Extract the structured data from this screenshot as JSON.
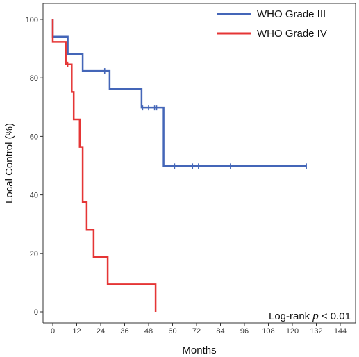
{
  "chart_data": {
    "type": "line",
    "subtype": "kaplan-meier step",
    "xlabel": "Months",
    "ylabel": "Local Control (%)",
    "xlim": [
      0,
      144
    ],
    "ylim": [
      0,
      100
    ],
    "x_ticks": [
      0,
      12,
      24,
      36,
      48,
      60,
      72,
      84,
      96,
      108,
      120,
      132,
      144
    ],
    "y_ticks": [
      0,
      20,
      40,
      60,
      80,
      100
    ],
    "grid": false,
    "legend_position": "top-right",
    "annotation": {
      "prefix": "Log-rank ",
      "italic": "p",
      "suffix": " < 0.01",
      "position": "bottom-right"
    },
    "series": [
      {
        "name": "WHO Grade III",
        "color": "#4466b8",
        "steps": [
          [
            0,
            100
          ],
          [
            0,
            94.1
          ],
          [
            7.5,
            94.1
          ],
          [
            7.5,
            88.2
          ],
          [
            15,
            88.2
          ],
          [
            15,
            82.4
          ],
          [
            28.5,
            82.4
          ],
          [
            28.5,
            76.2
          ],
          [
            44.5,
            76.2
          ],
          [
            44.5,
            69.8
          ],
          [
            55.5,
            69.8
          ],
          [
            55.5,
            49.8
          ],
          [
            127,
            49.8
          ]
        ],
        "censored": [
          [
            26,
            82.4
          ],
          [
            45,
            69.8
          ],
          [
            48,
            69.8
          ],
          [
            51,
            69.8
          ],
          [
            52,
            69.8
          ],
          [
            61,
            49.8
          ],
          [
            70,
            49.8
          ],
          [
            73,
            49.8
          ],
          [
            89,
            49.8
          ],
          [
            127,
            49.8
          ]
        ]
      },
      {
        "name": "WHO Grade IV",
        "color": "#e53535",
        "steps": [
          [
            0,
            100
          ],
          [
            0,
            92.3
          ],
          [
            6.5,
            92.3
          ],
          [
            6.5,
            84.6
          ],
          [
            9.5,
            84.6
          ],
          [
            9.5,
            75.2
          ],
          [
            10.5,
            75.2
          ],
          [
            10.5,
            65.8
          ],
          [
            13.5,
            65.8
          ],
          [
            13.5,
            56.4
          ],
          [
            15,
            56.4
          ],
          [
            15,
            37.6
          ],
          [
            17,
            37.6
          ],
          [
            17,
            28.2
          ],
          [
            20.5,
            28.2
          ],
          [
            20.5,
            18.8
          ],
          [
            27.5,
            18.8
          ],
          [
            27.5,
            9.4
          ],
          [
            51.5,
            9.4
          ],
          [
            51.5,
            0
          ]
        ],
        "censored": [
          [
            7.5,
            84.6
          ]
        ]
      }
    ]
  }
}
